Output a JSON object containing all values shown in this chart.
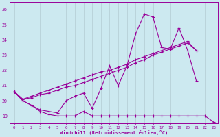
{
  "xlabel": "Windchill (Refroidissement éolien,°C)",
  "background_color": "#cce9f0",
  "line_color": "#990099",
  "grid_color": "#b0c8d0",
  "x_values": [
    0,
    1,
    2,
    3,
    4,
    5,
    6,
    7,
    8,
    9,
    10,
    11,
    12,
    13,
    14,
    15,
    16,
    17,
    18,
    19,
    20,
    21,
    22,
    23
  ],
  "line1_y": [
    20.6,
    20.0,
    19.7,
    19.3,
    19.1,
    19.0,
    19.0,
    19.0,
    19.3,
    19.0,
    19.0,
    19.0,
    19.0,
    19.0,
    19.0,
    19.0,
    19.0,
    19.0,
    19.0,
    19.0,
    19.0,
    19.0,
    19.0,
    18.6
  ],
  "line2_y": [
    20.6,
    20.0,
    19.7,
    19.4,
    19.3,
    19.2,
    20.0,
    20.3,
    20.5,
    19.5,
    20.8,
    22.3,
    21.0,
    22.3,
    24.4,
    25.7,
    25.5,
    23.5,
    23.4,
    24.8,
    23.3,
    21.3,
    null,
    null
  ],
  "line3_y": [
    20.6,
    20.1,
    20.2,
    20.4,
    20.5,
    20.7,
    20.9,
    21.0,
    21.2,
    21.4,
    21.6,
    21.8,
    22.0,
    22.2,
    22.5,
    22.7,
    23.0,
    23.2,
    23.4,
    23.6,
    23.8,
    23.3,
    null,
    null
  ],
  "line4_y": [
    20.6,
    20.1,
    20.3,
    20.5,
    20.7,
    20.9,
    21.1,
    21.3,
    21.5,
    21.7,
    21.9,
    22.0,
    22.2,
    22.4,
    22.7,
    22.9,
    23.1,
    23.3,
    23.5,
    23.7,
    23.9,
    23.3,
    null,
    null
  ],
  "ylim": [
    18.5,
    26.5
  ],
  "xlim": [
    -0.5,
    23.5
  ],
  "yticks": [
    19,
    20,
    21,
    22,
    23,
    24,
    25,
    26
  ],
  "xticks": [
    0,
    1,
    2,
    3,
    4,
    5,
    6,
    7,
    8,
    9,
    10,
    11,
    12,
    13,
    14,
    15,
    16,
    17,
    18,
    19,
    20,
    21,
    22,
    23
  ]
}
